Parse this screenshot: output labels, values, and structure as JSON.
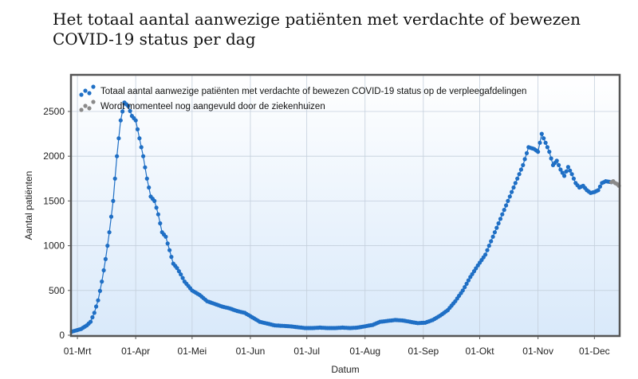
{
  "title": "Het totaal aantal aanwezige patiënten met verdachte of bewezen COVID-19 status per dag",
  "chart_data": {
    "type": "line",
    "title": "Het totaal aantal aanwezige patiënten met verdachte of bewezen COVID-19 status per dag",
    "xlabel": "Datum",
    "ylabel": "Aantal patiënten",
    "x_start_date": "2020-02-27",
    "xlim_days": [
      0,
      291
    ],
    "ylim": [
      0,
      2900
    ],
    "yticks": [
      0,
      500,
      1000,
      1500,
      2000,
      2500
    ],
    "ytick_labels": [
      "0",
      "500",
      "1000",
      "1500",
      "2000",
      "2500"
    ],
    "xticks": [
      {
        "day": 3,
        "label": "01-Mrt"
      },
      {
        "day": 34,
        "label": "01-Apr"
      },
      {
        "day": 64,
        "label": "01-Mei"
      },
      {
        "day": 95,
        "label": "01-Jun"
      },
      {
        "day": 125,
        "label": "01-Jul"
      },
      {
        "day": 156,
        "label": "01-Aug"
      },
      {
        "day": 187,
        "label": "01-Sep"
      },
      {
        "day": 217,
        "label": "01-Okt"
      },
      {
        "day": 248,
        "label": "01-Nov"
      },
      {
        "day": 278,
        "label": "01-Dec"
      }
    ],
    "grid": true,
    "legend_position": "top-left",
    "series": [
      {
        "name": "Totaal aantal aanwezige patiënten met verdachte of bewezen COVID-19 status op de verpleegafdelingen",
        "color": "#1f6fc5",
        "keypoints": [
          [
            0,
            40
          ],
          [
            5,
            70
          ],
          [
            8,
            110
          ],
          [
            10,
            150
          ],
          [
            12,
            250
          ],
          [
            14,
            390
          ],
          [
            16,
            600
          ],
          [
            18,
            850
          ],
          [
            20,
            1150
          ],
          [
            22,
            1500
          ],
          [
            24,
            2000
          ],
          [
            26,
            2400
          ],
          [
            28,
            2600
          ],
          [
            30,
            2560
          ],
          [
            32,
            2450
          ],
          [
            34,
            2400
          ],
          [
            36,
            2200
          ],
          [
            38,
            2000
          ],
          [
            40,
            1750
          ],
          [
            42,
            1550
          ],
          [
            44,
            1500
          ],
          [
            46,
            1350
          ],
          [
            48,
            1150
          ],
          [
            50,
            1100
          ],
          [
            52,
            950
          ],
          [
            54,
            800
          ],
          [
            56,
            750
          ],
          [
            58,
            680
          ],
          [
            60,
            600
          ],
          [
            64,
            500
          ],
          [
            68,
            450
          ],
          [
            72,
            380
          ],
          [
            76,
            350
          ],
          [
            80,
            320
          ],
          [
            84,
            300
          ],
          [
            88,
            270
          ],
          [
            92,
            250
          ],
          [
            96,
            200
          ],
          [
            100,
            150
          ],
          [
            104,
            130
          ],
          [
            108,
            110
          ],
          [
            112,
            105
          ],
          [
            116,
            100
          ],
          [
            120,
            90
          ],
          [
            124,
            80
          ],
          [
            128,
            80
          ],
          [
            132,
            85
          ],
          [
            136,
            80
          ],
          [
            140,
            80
          ],
          [
            144,
            85
          ],
          [
            148,
            80
          ],
          [
            152,
            85
          ],
          [
            156,
            100
          ],
          [
            160,
            115
          ],
          [
            164,
            150
          ],
          [
            168,
            160
          ],
          [
            172,
            170
          ],
          [
            176,
            165
          ],
          [
            180,
            150
          ],
          [
            184,
            135
          ],
          [
            188,
            140
          ],
          [
            192,
            170
          ],
          [
            196,
            220
          ],
          [
            200,
            280
          ],
          [
            204,
            380
          ],
          [
            208,
            500
          ],
          [
            212,
            650
          ],
          [
            216,
            780
          ],
          [
            220,
            900
          ],
          [
            224,
            1100
          ],
          [
            228,
            1300
          ],
          [
            232,
            1500
          ],
          [
            236,
            1700
          ],
          [
            240,
            1900
          ],
          [
            243,
            2100
          ],
          [
            246,
            2080
          ],
          [
            248,
            2050
          ],
          [
            250,
            2250
          ],
          [
            252,
            2150
          ],
          [
            254,
            2050
          ],
          [
            256,
            1900
          ],
          [
            258,
            1950
          ],
          [
            260,
            1850
          ],
          [
            262,
            1780
          ],
          [
            264,
            1880
          ],
          [
            266,
            1800
          ],
          [
            268,
            1700
          ],
          [
            270,
            1650
          ],
          [
            272,
            1670
          ],
          [
            274,
            1620
          ],
          [
            276,
            1590
          ],
          [
            278,
            1600
          ],
          [
            280,
            1620
          ],
          [
            282,
            1700
          ],
          [
            284,
            1720
          ],
          [
            287,
            1710
          ]
        ]
      },
      {
        "name": "Wordt momenteel nog aangevuld door de ziekenhuizen",
        "color": "#8a8a8a",
        "keypoints": [
          [
            287,
            1710
          ],
          [
            288,
            1720
          ],
          [
            289,
            1700
          ],
          [
            290,
            1690
          ],
          [
            291,
            1670
          ]
        ]
      }
    ]
  }
}
